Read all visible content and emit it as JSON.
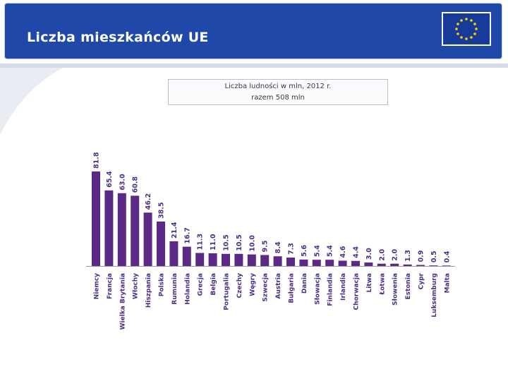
{
  "header": {
    "title": "Liczba mieszkańców UE",
    "flag_icon": "eu-flag-icon"
  },
  "colors": {
    "header_blue": "#1f48a8",
    "bar_purple": "#5b2a86",
    "label_purple": "#4b2f86"
  },
  "chart_data": {
    "type": "bar",
    "title": "Liczba ludności w mln, 2012 r.",
    "subtitle": "razem 508 mln",
    "categories": [
      "Niemcy",
      "Francja",
      "Wielka Brytania",
      "Włochy",
      "Hiszpania",
      "Polska",
      "Rumunia",
      "Holandia",
      "Grecja",
      "Belgia",
      "Portugalia",
      "Czechy",
      "Węgry",
      "Szwecja",
      "Austria",
      "Bułgaria",
      "Dania",
      "Słowacja",
      "Finlandia",
      "Irlandia",
      "Chorwacja",
      "Litwa",
      "Łotwa",
      "Słowenia",
      "Estonia",
      "Cypr",
      "Luksemburg",
      "Malta"
    ],
    "values": [
      81.8,
      65.4,
      63.0,
      60.8,
      46.2,
      38.5,
      21.4,
      16.7,
      11.3,
      11.0,
      10.5,
      10.5,
      10.0,
      9.5,
      8.4,
      7.3,
      5.6,
      5.4,
      5.4,
      4.6,
      4.4,
      3.0,
      2.0,
      2.0,
      1.3,
      0.9,
      0.5,
      0.4
    ],
    "value_labels": [
      "81.8",
      "65.4",
      "63.0",
      "60.8",
      "46.2",
      "38.5",
      "21.4",
      "16.7",
      "11.3",
      "11.0",
      "10.5",
      "10.5",
      "10.0",
      "9.5",
      "8.4",
      "7.3",
      "5.6",
      "5.4",
      "5.4",
      "4.6",
      "4.4",
      "3.0",
      "2.0",
      "2.0",
      "1.3",
      "0.9",
      "0.5",
      "0.4"
    ],
    "ylim": [
      0,
      81.8
    ],
    "grid": false
  }
}
